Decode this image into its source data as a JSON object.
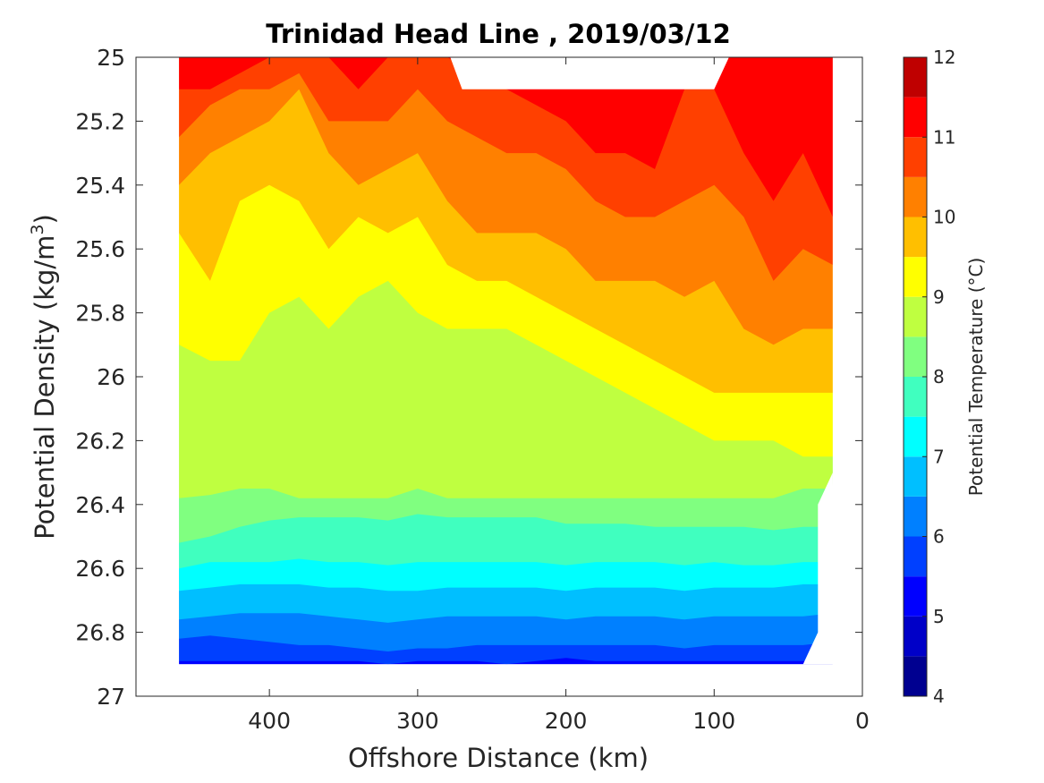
{
  "chart_data": {
    "type": "contourf",
    "title": "Trinidad Head Line , 2019/03/12",
    "xlabel": "Offshore Distance (km)",
    "ylabel_main": "Potential Density (kg/m",
    "ylabel_sup": "3",
    "ylabel_close": ")",
    "xlim": [
      490,
      0
    ],
    "ylim": [
      25,
      27
    ],
    "y_reversed": true,
    "x_reversed": true,
    "xticks": [
      400,
      300,
      200,
      100,
      0
    ],
    "yticks": [
      25,
      25.2,
      25.4,
      25.6,
      25.8,
      26,
      26.2,
      26.4,
      26.6,
      26.8,
      27
    ],
    "ytick_labels": [
      "25",
      "25.2",
      "25.4",
      "25.6",
      "25.8",
      "26",
      "26.2",
      "26.4",
      "26.6",
      "26.8",
      "27"
    ],
    "colorbar": {
      "label": "Potential Temperature (°C)",
      "min": 4,
      "max": 12,
      "ticks": [
        4,
        5,
        6,
        7,
        8,
        9,
        10,
        11,
        12
      ],
      "levels": [
        4,
        4.5,
        5,
        5.5,
        6,
        6.5,
        7,
        7.5,
        8,
        8.5,
        9,
        9.5,
        10,
        10.5,
        11,
        11.5,
        12
      ],
      "colormap": "jet",
      "colors": [
        "#000090",
        "#0000c8",
        "#0000ff",
        "#0040ff",
        "#0080ff",
        "#00bfff",
        "#00ffff",
        "#40ffbf",
        "#80ff80",
        "#bfff40",
        "#ffff00",
        "#ffbf00",
        "#ff8000",
        "#ff4000",
        "#ff0000",
        "#bf0000"
      ]
    },
    "profile_x_km": [
      461,
      440,
      420,
      400,
      380,
      360,
      340,
      320,
      300,
      280,
      260,
      240,
      220,
      200,
      180,
      160,
      140,
      120,
      100,
      80,
      60,
      40,
      20
    ],
    "isolines": [
      {
        "level": 11,
        "sigma": [
          25.1,
          25.1,
          25.05,
          25.0,
          25.0,
          25.0,
          25.1,
          25.0,
          25.0,
          25.0,
          25.05,
          25.1,
          25.15,
          25.2,
          25.3,
          25.3,
          25.35,
          25.1,
          25.1,
          25.3,
          25.45,
          25.3,
          25.5
        ]
      },
      {
        "level": 10.5,
        "sigma": [
          25.25,
          25.15,
          25.1,
          25.1,
          25.05,
          25.2,
          25.2,
          25.2,
          25.1,
          25.2,
          25.25,
          25.3,
          25.3,
          25.35,
          25.45,
          25.5,
          25.5,
          25.45,
          25.4,
          25.5,
          25.7,
          25.6,
          25.65
        ]
      },
      {
        "level": 10,
        "sigma": [
          25.4,
          25.3,
          25.25,
          25.2,
          25.1,
          25.3,
          25.4,
          25.35,
          25.3,
          25.45,
          25.55,
          25.55,
          25.55,
          25.6,
          25.7,
          25.7,
          25.7,
          25.75,
          25.7,
          25.85,
          25.9,
          25.85,
          25.85
        ]
      },
      {
        "level": 9.5,
        "sigma": [
          25.55,
          25.7,
          25.45,
          25.4,
          25.45,
          25.6,
          25.5,
          25.55,
          25.5,
          25.65,
          25.7,
          25.7,
          25.75,
          25.8,
          25.85,
          25.9,
          25.95,
          26.0,
          26.05,
          26.05,
          26.05,
          26.05,
          26.05
        ]
      },
      {
        "level": 9,
        "sigma": [
          25.9,
          25.95,
          25.95,
          25.8,
          25.75,
          25.85,
          25.75,
          25.7,
          25.8,
          25.85,
          25.85,
          25.85,
          25.9,
          25.95,
          26.0,
          26.05,
          26.1,
          26.15,
          26.2,
          26.2,
          26.2,
          26.25,
          26.25
        ]
      },
      {
        "level": 8.5,
        "sigma": [
          26.38,
          26.37,
          26.35,
          26.35,
          26.38,
          26.38,
          26.38,
          26.38,
          26.35,
          26.38,
          26.38,
          26.38,
          26.38,
          26.38,
          26.38,
          26.38,
          26.38,
          26.38,
          26.38,
          26.38,
          26.38,
          26.35,
          26.35
        ]
      },
      {
        "level": 8,
        "sigma": [
          26.52,
          26.5,
          26.47,
          26.45,
          26.44,
          26.44,
          26.44,
          26.45,
          26.43,
          26.44,
          26.44,
          26.44,
          26.44,
          26.46,
          26.46,
          26.46,
          26.47,
          26.47,
          26.47,
          26.47,
          26.48,
          26.47,
          26.47
        ]
      },
      {
        "level": 7.5,
        "sigma": [
          26.6,
          26.58,
          26.58,
          26.58,
          26.57,
          26.58,
          26.58,
          26.59,
          26.58,
          26.58,
          26.58,
          26.58,
          26.58,
          26.59,
          26.58,
          26.58,
          26.58,
          26.59,
          26.58,
          26.59,
          26.59,
          26.58,
          26.58
        ]
      },
      {
        "level": 7,
        "sigma": [
          26.67,
          26.66,
          26.65,
          26.65,
          26.65,
          26.66,
          26.66,
          26.67,
          26.67,
          26.66,
          26.66,
          26.66,
          26.66,
          26.67,
          26.66,
          26.66,
          26.66,
          26.67,
          26.66,
          26.66,
          26.66,
          26.65,
          26.65
        ]
      },
      {
        "level": 6.5,
        "sigma": [
          26.76,
          26.75,
          26.74,
          26.74,
          26.74,
          26.75,
          26.76,
          26.77,
          26.76,
          26.75,
          26.75,
          26.75,
          26.75,
          26.76,
          26.75,
          26.75,
          26.75,
          26.76,
          26.75,
          26.75,
          26.75,
          26.75,
          26.74
        ]
      },
      {
        "level": 6,
        "sigma": [
          26.82,
          26.81,
          26.82,
          26.83,
          26.84,
          26.84,
          26.85,
          26.86,
          26.85,
          26.85,
          26.84,
          26.84,
          26.84,
          26.84,
          26.84,
          26.84,
          26.84,
          26.85,
          26.84,
          26.84,
          26.84,
          26.84,
          26.83
        ]
      },
      {
        "level": 5.5,
        "sigma": [
          26.89,
          26.89,
          26.89,
          26.89,
          26.89,
          26.89,
          26.89,
          26.9,
          26.89,
          26.89,
          26.89,
          26.9,
          26.89,
          26.88,
          26.89,
          26.89,
          26.89,
          26.89,
          26.89,
          26.89,
          26.89,
          26.89,
          26.88
        ]
      }
    ],
    "region": {
      "x_left_km": 461,
      "x_right_km": 20,
      "sigma_bottom": 26.9,
      "top_gap_km": [
        270,
        100
      ],
      "top_gap_sigma": 25.1,
      "right_cut_km": 30
    }
  }
}
